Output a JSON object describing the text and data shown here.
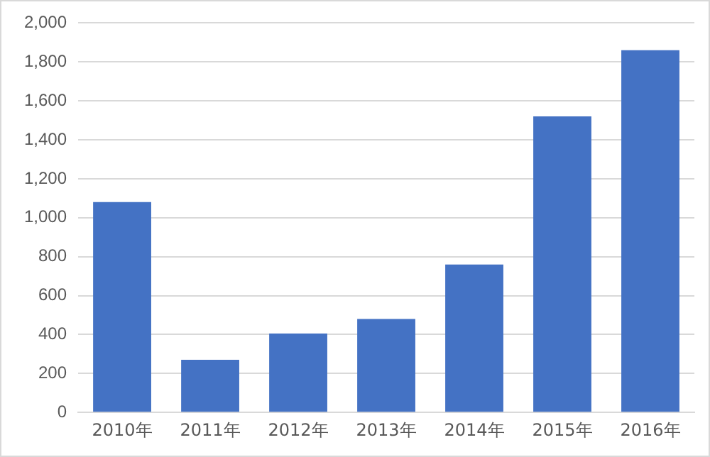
{
  "chart_data": {
    "type": "bar",
    "categories": [
      "2010年",
      "2011年",
      "2012年",
      "2013年",
      "2014年",
      "2015年",
      "2016年"
    ],
    "values": [
      1080,
      270,
      405,
      480,
      760,
      1520,
      1860
    ],
    "color": "#4472c4",
    "ylim": [
      0,
      2000
    ],
    "yticks": [
      {
        "value": 0,
        "label": "0"
      },
      {
        "value": 200,
        "label": "200"
      },
      {
        "value": 400,
        "label": "400"
      },
      {
        "value": 600,
        "label": "600"
      },
      {
        "value": 800,
        "label": "800"
      },
      {
        "value": 1000,
        "label": "1,000"
      },
      {
        "value": 1200,
        "label": "1,200"
      },
      {
        "value": 1400,
        "label": "1,400"
      },
      {
        "value": 1600,
        "label": "1,600"
      },
      {
        "value": 1800,
        "label": "1,800"
      },
      {
        "value": 2000,
        "label": "2,000"
      }
    ],
    "grid": "y",
    "legend": false
  }
}
